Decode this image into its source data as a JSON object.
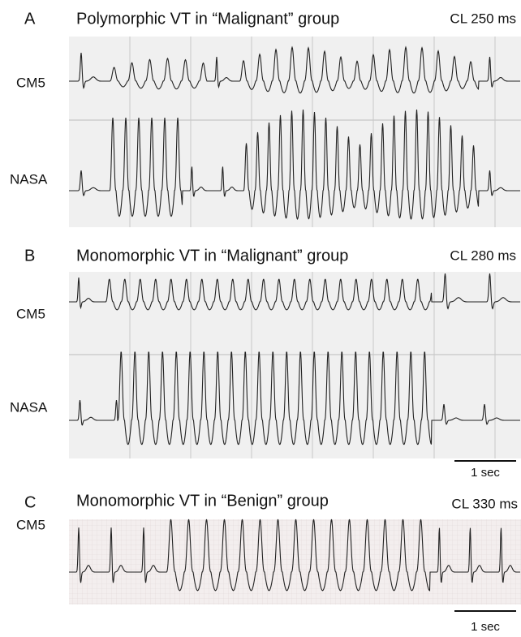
{
  "panels": [
    {
      "letter": "A",
      "title": "Polymorphic VT in “Malignant” group",
      "cycle_length": "CL 250 ms",
      "leads": [
        "CM5",
        "NASA"
      ]
    },
    {
      "letter": "B",
      "title": "Monomorphic VT in “Malignant” group",
      "cycle_length": "CL 280 ms",
      "leads": [
        "CM5",
        "NASA"
      ],
      "scale_bar": "1 sec"
    },
    {
      "letter": "C",
      "title": "Monomorphic VT in “Benign” group",
      "cycle_length": "CL 330 ms",
      "leads": [
        "CM5"
      ],
      "scale_bar": "1 sec"
    }
  ]
}
